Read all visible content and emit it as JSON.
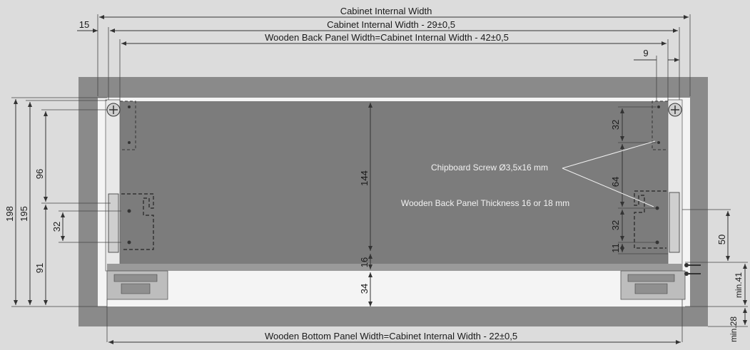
{
  "dimensions": {
    "cabinet_internal_width": "Cabinet Internal Width",
    "cabinet_internal_width_minus_29": "Cabinet Internal Width - 29±0,5",
    "back_panel_width": "Wooden Back Panel Width=Cabinet Internal Width - 42±0,5",
    "bottom_panel_width": "Wooden Bottom Panel Width=Cabinet Internal Width - 22±0,5",
    "offset_15": "15",
    "offset_9": "9",
    "height_198": "198",
    "height_195": "195",
    "height_96": "96",
    "height_91": "91",
    "height_32_left": "32",
    "height_144": "144",
    "height_16": "16",
    "height_34": "34",
    "height_32_right_top": "32",
    "height_64": "64",
    "height_32_right_mid": "32",
    "height_11": "11",
    "height_50": "50",
    "min_41": "min.41",
    "min_28": "min.28"
  },
  "annotations": {
    "screw": "Chipboard Screw Ø3,5x16 mm",
    "panel_thickness": "Wooden Back Panel Thickness 16 or 18 mm"
  },
  "colors": {
    "background": "#dcdcdc",
    "cabinet_wall": "#8a8a8a",
    "back_panel": "#7c7c7c",
    "interior": "#f4f4f4"
  }
}
